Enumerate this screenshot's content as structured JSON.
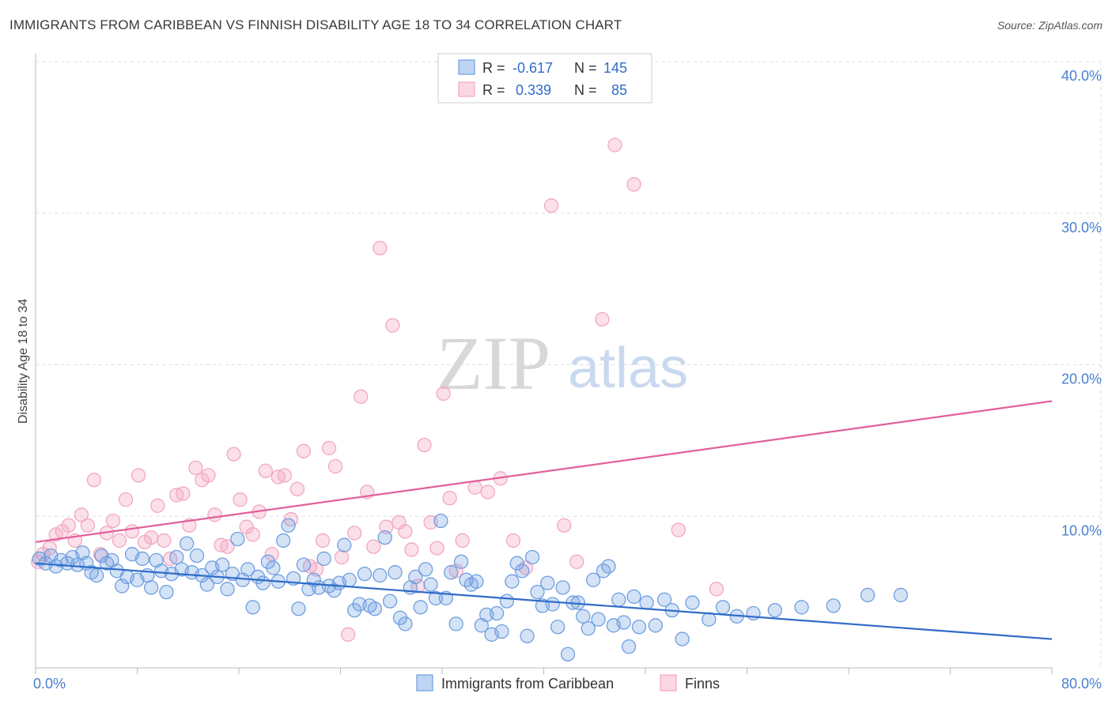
{
  "title": "IMMIGRANTS FROM CARIBBEAN VS FINNISH DISABILITY AGE 18 TO 34 CORRELATION CHART",
  "source": "Source: ZipAtlas.com",
  "watermark": {
    "zip": "ZIP",
    "atlas": "atlas"
  },
  "chart_data": {
    "type": "scatter",
    "ylabel": "Disability Age 18 to 34",
    "xlim": [
      0,
      80
    ],
    "ylim": [
      0,
      40
    ],
    "x_tick_labels": [
      "0.0%",
      "80.0%"
    ],
    "y_ticks": [
      10,
      20,
      30,
      40
    ],
    "y_tick_labels": [
      "10.0%",
      "20.0%",
      "30.0%",
      "40.0%"
    ],
    "grid": true,
    "legend_placement": "top-center",
    "series": [
      {
        "name": "Immigrants from Caribbean",
        "color": "#6f9fe0",
        "line_color": "#2f6cc8",
        "r_label": "R =",
        "r_value": "-0.617",
        "n_label": "N =",
        "n_value": "145",
        "trend": {
          "x": [
            0,
            80
          ],
          "y": [
            6.9,
            1.9
          ]
        },
        "points": [
          [
            0.3,
            7.2
          ],
          [
            0.8,
            6.9
          ],
          [
            1.2,
            7.4
          ],
          [
            1.6,
            6.7
          ],
          [
            2.0,
            7.1
          ],
          [
            2.5,
            6.9
          ],
          [
            2.9,
            7.3
          ],
          [
            3.3,
            6.8
          ],
          [
            3.7,
            7.6
          ],
          [
            4.0,
            6.9
          ],
          [
            4.4,
            6.3
          ],
          [
            4.8,
            6.1
          ],
          [
            5.2,
            7.4
          ],
          [
            5.6,
            6.9
          ],
          [
            6.0,
            7.1
          ],
          [
            6.4,
            6.4
          ],
          [
            6.8,
            5.4
          ],
          [
            7.2,
            6.0
          ],
          [
            7.6,
            7.5
          ],
          [
            8.0,
            5.8
          ],
          [
            8.4,
            7.2
          ],
          [
            8.8,
            6.1
          ],
          [
            9.1,
            5.3
          ],
          [
            9.5,
            7.1
          ],
          [
            9.9,
            6.4
          ],
          [
            10.3,
            5.0
          ],
          [
            10.7,
            6.2
          ],
          [
            11.1,
            7.3
          ],
          [
            11.5,
            6.5
          ],
          [
            11.9,
            8.2
          ],
          [
            12.3,
            6.3
          ],
          [
            12.7,
            7.4
          ],
          [
            13.1,
            6.1
          ],
          [
            13.5,
            5.5
          ],
          [
            13.9,
            6.6
          ],
          [
            14.3,
            6.0
          ],
          [
            14.7,
            6.8
          ],
          [
            15.1,
            5.2
          ],
          [
            15.5,
            6.2
          ],
          [
            15.9,
            8.5
          ],
          [
            16.3,
            5.8
          ],
          [
            16.7,
            6.5
          ],
          [
            17.1,
            4.0
          ],
          [
            17.5,
            6.0
          ],
          [
            17.9,
            5.6
          ],
          [
            18.3,
            7.0
          ],
          [
            18.7,
            6.6
          ],
          [
            19.1,
            5.7
          ],
          [
            19.5,
            8.4
          ],
          [
            19.9,
            9.4
          ],
          [
            20.3,
            5.9
          ],
          [
            20.7,
            3.9
          ],
          [
            21.1,
            6.8
          ],
          [
            21.5,
            5.2
          ],
          [
            21.9,
            5.8
          ],
          [
            22.3,
            5.3
          ],
          [
            22.7,
            7.2
          ],
          [
            23.1,
            5.4
          ],
          [
            23.5,
            5.1
          ],
          [
            23.9,
            5.6
          ],
          [
            24.3,
            8.1
          ],
          [
            24.7,
            5.8
          ],
          [
            25.1,
            3.8
          ],
          [
            25.5,
            4.2
          ],
          [
            25.9,
            6.2
          ],
          [
            26.3,
            4.1
          ],
          [
            26.7,
            3.9
          ],
          [
            27.1,
            6.1
          ],
          [
            27.5,
            8.6
          ],
          [
            27.9,
            4.4
          ],
          [
            28.3,
            6.3
          ],
          [
            28.7,
            3.3
          ],
          [
            29.1,
            2.9
          ],
          [
            29.5,
            5.3
          ],
          [
            29.9,
            6.0
          ],
          [
            30.3,
            4.0
          ],
          [
            30.7,
            6.5
          ],
          [
            31.1,
            5.5
          ],
          [
            31.5,
            4.6
          ],
          [
            31.9,
            9.7
          ],
          [
            32.3,
            4.6
          ],
          [
            32.7,
            6.3
          ],
          [
            33.1,
            2.9
          ],
          [
            33.5,
            7.0
          ],
          [
            33.9,
            5.8
          ],
          [
            34.3,
            5.5
          ],
          [
            34.7,
            5.7
          ],
          [
            35.1,
            2.8
          ],
          [
            35.5,
            3.5
          ],
          [
            35.9,
            2.2
          ],
          [
            36.3,
            3.6
          ],
          [
            36.7,
            2.4
          ],
          [
            37.1,
            4.4
          ],
          [
            37.5,
            5.7
          ],
          [
            37.9,
            6.9
          ],
          [
            38.3,
            6.4
          ],
          [
            38.7,
            2.1
          ],
          [
            39.1,
            7.3
          ],
          [
            39.5,
            5.0
          ],
          [
            39.9,
            4.1
          ],
          [
            40.3,
            5.6
          ],
          [
            40.7,
            4.2
          ],
          [
            41.1,
            2.7
          ],
          [
            41.5,
            5.3
          ],
          [
            41.9,
            0.9
          ],
          [
            42.3,
            4.3
          ],
          [
            42.7,
            4.3
          ],
          [
            43.1,
            3.4
          ],
          [
            43.5,
            2.6
          ],
          [
            43.9,
            5.8
          ],
          [
            44.3,
            3.2
          ],
          [
            44.7,
            6.4
          ],
          [
            45.1,
            6.7
          ],
          [
            45.5,
            2.8
          ],
          [
            45.9,
            4.5
          ],
          [
            46.3,
            3.0
          ],
          [
            46.7,
            1.4
          ],
          [
            47.1,
            4.7
          ],
          [
            47.5,
            2.7
          ],
          [
            48.1,
            4.3
          ],
          [
            48.8,
            2.8
          ],
          [
            49.5,
            4.5
          ],
          [
            50.1,
            3.8
          ],
          [
            50.9,
            1.9
          ],
          [
            51.7,
            4.3
          ],
          [
            53.0,
            3.2
          ],
          [
            54.1,
            4.0
          ],
          [
            55.2,
            3.4
          ],
          [
            56.5,
            3.6
          ],
          [
            58.2,
            3.8
          ],
          [
            60.3,
            4.0
          ],
          [
            62.8,
            4.1
          ],
          [
            65.5,
            4.8
          ],
          [
            68.1,
            4.8
          ]
        ]
      },
      {
        "name": "Finns",
        "color": "#f3a6c2",
        "line_color": "#e0609a",
        "r_label": "R =",
        "r_value": "0.339",
        "n_label": "N =",
        "n_value": "85",
        "trend": {
          "x": [
            0,
            80
          ],
          "y": [
            8.3,
            17.6
          ]
        },
        "points": [
          [
            0.2,
            7.0
          ],
          [
            0.6,
            7.5
          ],
          [
            1.1,
            7.9
          ],
          [
            1.6,
            8.8
          ],
          [
            2.1,
            9.0
          ],
          [
            2.6,
            9.4
          ],
          [
            3.1,
            8.4
          ],
          [
            3.6,
            10.1
          ],
          [
            4.1,
            9.4
          ],
          [
            4.6,
            12.4
          ],
          [
            5.1,
            7.5
          ],
          [
            5.6,
            8.9
          ],
          [
            6.1,
            9.7
          ],
          [
            6.6,
            8.4
          ],
          [
            7.1,
            11.1
          ],
          [
            7.6,
            9.0
          ],
          [
            8.1,
            12.7
          ],
          [
            8.6,
            8.3
          ],
          [
            9.1,
            8.6
          ],
          [
            9.6,
            10.7
          ],
          [
            10.1,
            8.4
          ],
          [
            10.6,
            7.2
          ],
          [
            11.1,
            11.4
          ],
          [
            11.6,
            11.5
          ],
          [
            12.1,
            9.4
          ],
          [
            12.6,
            13.2
          ],
          [
            13.1,
            12.4
          ],
          [
            13.6,
            12.7
          ],
          [
            14.1,
            10.1
          ],
          [
            14.6,
            8.1
          ],
          [
            15.1,
            8.0
          ],
          [
            15.6,
            14.1
          ],
          [
            16.1,
            11.1
          ],
          [
            16.6,
            9.3
          ],
          [
            17.1,
            8.8
          ],
          [
            17.6,
            10.3
          ],
          [
            18.1,
            13.0
          ],
          [
            18.6,
            7.5
          ],
          [
            19.1,
            12.6
          ],
          [
            19.6,
            12.7
          ],
          [
            20.1,
            9.8
          ],
          [
            20.6,
            11.8
          ],
          [
            21.1,
            14.3
          ],
          [
            21.6,
            6.7
          ],
          [
            22.1,
            6.5
          ],
          [
            22.6,
            8.4
          ],
          [
            23.1,
            14.5
          ],
          [
            23.6,
            13.3
          ],
          [
            24.1,
            7.3
          ],
          [
            24.6,
            2.2
          ],
          [
            25.1,
            8.9
          ],
          [
            25.6,
            17.9
          ],
          [
            26.1,
            11.6
          ],
          [
            26.6,
            8.0
          ],
          [
            27.1,
            27.7
          ],
          [
            27.6,
            9.3
          ],
          [
            28.1,
            22.6
          ],
          [
            28.6,
            9.6
          ],
          [
            29.1,
            9.0
          ],
          [
            29.6,
            7.8
          ],
          [
            30.1,
            5.4
          ],
          [
            30.6,
            14.7
          ],
          [
            31.1,
            9.6
          ],
          [
            31.6,
            7.9
          ],
          [
            32.1,
            18.1
          ],
          [
            32.6,
            11.2
          ],
          [
            33.1,
            6.4
          ],
          [
            33.6,
            8.4
          ],
          [
            34.6,
            11.9
          ],
          [
            35.6,
            11.6
          ],
          [
            36.6,
            12.5
          ],
          [
            37.6,
            8.4
          ],
          [
            38.6,
            6.6
          ],
          [
            40.6,
            30.5
          ],
          [
            41.6,
            9.4
          ],
          [
            42.6,
            7.0
          ],
          [
            44.6,
            23.0
          ],
          [
            45.6,
            34.5
          ],
          [
            47.1,
            31.9
          ],
          [
            50.6,
            9.1
          ],
          [
            53.6,
            5.2
          ]
        ]
      }
    ]
  }
}
